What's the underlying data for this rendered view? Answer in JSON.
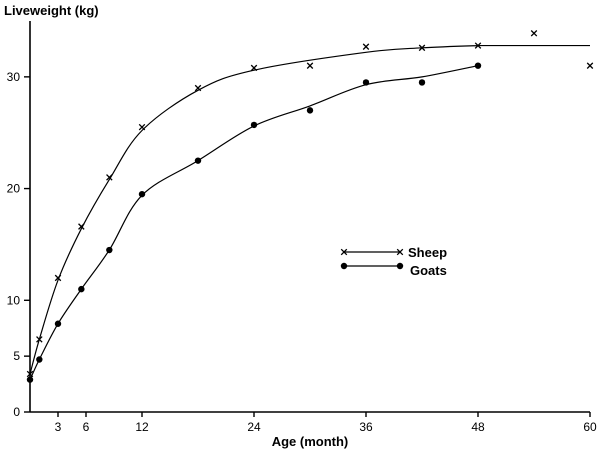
{
  "chart_data": {
    "type": "line",
    "title": "",
    "xlabel": "Age (month)",
    "ylabel": "Liveweight (kg)",
    "xlim": [
      0,
      60
    ],
    "ylim": [
      0,
      35
    ],
    "xticks": [
      3,
      6,
      12,
      24,
      36,
      48,
      60
    ],
    "yticks": [
      0,
      5,
      10,
      20,
      30
    ],
    "grid": false,
    "legend_position": "center-right",
    "series": [
      {
        "name": "Sheep",
        "marker": "x",
        "color": "#000000",
        "x": [
          0,
          1,
          3,
          5.5,
          8.5,
          12,
          18,
          24,
          30,
          36,
          42,
          48,
          54,
          60
        ],
        "y": [
          3.4,
          6.5,
          12,
          16.6,
          21,
          25.5,
          29,
          30.8,
          31,
          32.7,
          32.6,
          32.8,
          33.9,
          31
        ],
        "curve_end_x": 60,
        "curve_end_y": 32.8
      },
      {
        "name": "Goats",
        "marker": "dot",
        "color": "#000000",
        "x": [
          0,
          1,
          3,
          5.5,
          8.5,
          12,
          18,
          24,
          30,
          36,
          42,
          48
        ],
        "y": [
          2.9,
          4.7,
          7.9,
          11,
          14.5,
          19.5,
          22.5,
          25.7,
          27,
          29.5,
          29.5,
          31
        ]
      }
    ]
  }
}
